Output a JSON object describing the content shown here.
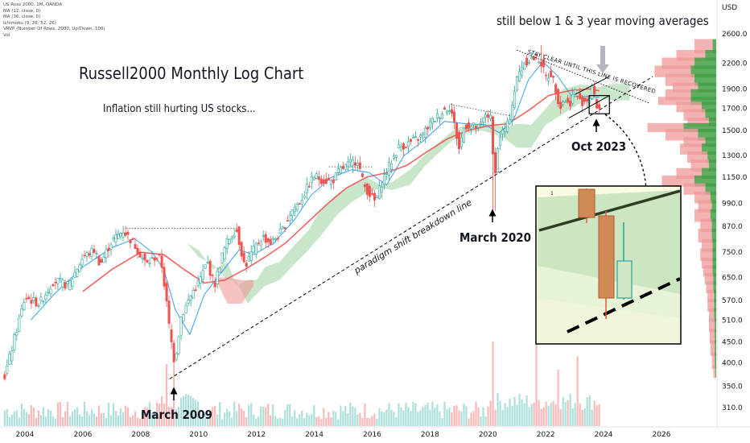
{
  "header": {
    "symbol": "US Russ 2000, 1M, OANDA",
    "indicators": [
      "MA (12, close, 0)",
      "MA (36, close, 0)",
      "Ichimoku (9, 26, 52, 26)",
      "VRVP (Number Of Rows, 2000, Up/Down, 100)",
      "Vol"
    ],
    "currency": "USD"
  },
  "annotations": {
    "title": "Russell2000 Monthly Log Chart",
    "subtitle": "Inflation still hurting US stocks...",
    "top_note": "still below 1 & 3 year moving averages",
    "stay_clear": "STAY CLEAR UNTIL THIS LINE IS RECOVERED",
    "trend_label": "paradigm shift breakdown line",
    "march_2009": "March 2009",
    "march_2020": "March 2020",
    "oct_2023": "Oct 2023"
  },
  "colors": {
    "up": "#26a69a",
    "down": "#ef5350",
    "ma12": "#2196f3",
    "ma36": "#ef5350",
    "cloud_bull": "#a5d6a7",
    "cloud_bear": "#ef9a9a",
    "profile_up": "#43a047",
    "profile_down": "#ef9a9a",
    "inset_bg": "#fbfbe3"
  },
  "chart_data": {
    "type": "candlestick",
    "title": "Russell2000 Monthly Log Chart",
    "scale": "log",
    "ylim": [
      310,
      2700
    ],
    "xlim": [
      2003.25,
      2027.1
    ],
    "y_ticks": [
      2600,
      2200,
      1900,
      1700,
      1500,
      1300,
      1150,
      990,
      870,
      750,
      650,
      570,
      510,
      450,
      400,
      350,
      310
    ],
    "x_ticks": [
      "2004",
      "2006",
      "2008",
      "2010",
      "2012",
      "2014",
      "2016",
      "2018",
      "2020",
      "2022",
      "2024",
      "2026"
    ],
    "close_path": [
      [
        2003.3,
        370
      ],
      [
        2004.0,
        580
      ],
      [
        2004.5,
        560
      ],
      [
        2005.0,
        640
      ],
      [
        2005.5,
        620
      ],
      [
        2006.0,
        730
      ],
      [
        2006.4,
        760
      ],
      [
        2006.6,
        700
      ],
      [
        2007.0,
        800
      ],
      [
        2007.4,
        850
      ],
      [
        2007.8,
        780
      ],
      [
        2008.2,
        700
      ],
      [
        2008.5,
        730
      ],
      [
        2008.7,
        720
      ],
      [
        2008.85,
        600
      ],
      [
        2009.0,
        480
      ],
      [
        2009.17,
        400
      ],
      [
        2009.4,
        520
      ],
      [
        2009.8,
        600
      ],
      [
        2010.0,
        630
      ],
      [
        2010.3,
        710
      ],
      [
        2010.55,
        620
      ],
      [
        2010.8,
        730
      ],
      [
        2011.0,
        800
      ],
      [
        2011.3,
        860
      ],
      [
        2011.6,
        690
      ],
      [
        2011.8,
        740
      ],
      [
        2012.2,
        820
      ],
      [
        2012.5,
        790
      ],
      [
        2012.9,
        850
      ],
      [
        2013.2,
        950
      ],
      [
        2013.5,
        1000
      ],
      [
        2013.8,
        1100
      ],
      [
        2014.0,
        1160
      ],
      [
        2014.3,
        1130
      ],
      [
        2014.6,
        1120
      ],
      [
        2014.9,
        1200
      ],
      [
        2015.3,
        1250
      ],
      [
        2015.5,
        1270
      ],
      [
        2015.7,
        1100
      ],
      [
        2016.1,
        1000
      ],
      [
        2016.4,
        1150
      ],
      [
        2016.9,
        1360
      ],
      [
        2017.3,
        1400
      ],
      [
        2017.7,
        1450
      ],
      [
        2018.0,
        1560
      ],
      [
        2018.5,
        1690
      ],
      [
        2018.7,
        1720
      ],
      [
        2018.9,
        1480
      ],
      [
        2019.0,
        1350
      ],
      [
        2019.2,
        1550
      ],
      [
        2019.7,
        1520
      ],
      [
        2019.95,
        1660
      ],
      [
        2020.1,
        1600
      ],
      [
        2020.22,
        1150
      ],
      [
        2020.4,
        1450
      ],
      [
        2020.7,
        1550
      ],
      [
        2021.0,
        2000
      ],
      [
        2021.2,
        2200
      ],
      [
        2021.5,
        2260
      ],
      [
        2021.8,
        2250
      ],
      [
        2022.0,
        2030
      ],
      [
        2022.2,
        2080
      ],
      [
        2022.5,
        1710
      ],
      [
        2022.65,
        1800
      ],
      [
        2022.8,
        1730
      ],
      [
        2023.0,
        1880
      ],
      [
        2023.2,
        1760
      ],
      [
        2023.5,
        1800
      ],
      [
        2023.6,
        1940
      ],
      [
        2023.7,
        1780
      ],
      [
        2023.8,
        1700
      ]
    ],
    "candle_count": 247,
    "extremes": {
      "low_2009": 345,
      "low_2020": 950,
      "high_2021": 2440
    },
    "levels": [
      {
        "from": [
          2007.5,
          860
        ],
        "to": [
          2011.5,
          860
        ]
      },
      {
        "from": [
          2014.5,
          1220
        ],
        "to": [
          2016.0,
          1220
        ]
      },
      {
        "from": [
          2018.7,
          1740
        ],
        "to": [
          2021.0,
          1620
        ]
      }
    ],
    "trendlines": [
      {
        "from": [
          2009.0,
          365
        ],
        "to": [
          2025.7,
          2040
        ]
      },
      {
        "from": [
          2021.0,
          2370
        ],
        "to": [
          2025.6,
          1750
        ]
      },
      {
        "from": [
          2023.0,
          1840
        ],
        "to": [
          2024.2,
          2040
        ]
      },
      {
        "from": [
          2022.8,
          1610
        ],
        "to": [
          2024.2,
          1830
        ]
      }
    ],
    "current_region": {
      "x": [
        2023.5,
        2024.2
      ],
      "y": [
        1650,
        1830
      ]
    },
    "cloud": [
      [
        2009.6,
        790,
        790
      ],
      [
        2010.0,
        760,
        730
      ],
      [
        2010.5,
        680,
        700
      ],
      [
        2011.0,
        710,
        640
      ],
      [
        2011.3,
        620,
        640
      ],
      [
        2011.7,
        640,
        560
      ],
      [
        2012.0,
        640,
        590
      ],
      [
        2012.3,
        690,
        620
      ],
      [
        2012.8,
        710,
        640
      ],
      [
        2013.3,
        780,
        700
      ],
      [
        2013.8,
        850,
        760
      ],
      [
        2014.2,
        950,
        820
      ],
      [
        2014.8,
        1050,
        930
      ],
      [
        2015.3,
        1100,
        1000
      ],
      [
        2015.8,
        1150,
        1050
      ],
      [
        2016.3,
        1100,
        1080
      ],
      [
        2016.7,
        1120,
        1070
      ],
      [
        2017.3,
        1200,
        1100
      ],
      [
        2017.8,
        1300,
        1220
      ],
      [
        2018.3,
        1400,
        1320
      ],
      [
        2018.8,
        1500,
        1420
      ],
      [
        2019.3,
        1560,
        1480
      ],
      [
        2019.8,
        1560,
        1500
      ],
      [
        2020.2,
        1560,
        1470
      ],
      [
        2020.6,
        1520,
        1430
      ],
      [
        2021.0,
        1560,
        1360
      ],
      [
        2021.5,
        1550,
        1360
      ],
      [
        2022.0,
        1700,
        1550
      ],
      [
        2022.6,
        1900,
        1650
      ],
      [
        2023.2,
        1950,
        1750
      ],
      [
        2023.8,
        1920,
        1800
      ],
      [
        2024.4,
        1960,
        1780
      ],
      [
        2024.9,
        1950,
        1780
      ]
    ],
    "cloud_bear": [
      [
        2010.6,
        640,
        650
      ],
      [
        2011.0,
        560,
        650
      ],
      [
        2011.5,
        560,
        640
      ],
      [
        2011.9,
        620,
        640
      ]
    ],
    "ma12": [
      [
        2004.2,
        510
      ],
      [
        2005.0,
        590
      ],
      [
        2006.0,
        690
      ],
      [
        2007.0,
        770
      ],
      [
        2007.8,
        810
      ],
      [
        2008.4,
        750
      ],
      [
        2008.8,
        680
      ],
      [
        2009.2,
        540
      ],
      [
        2009.7,
        470
      ],
      [
        2010.2,
        590
      ],
      [
        2010.8,
        670
      ],
      [
        2011.4,
        760
      ],
      [
        2011.9,
        740
      ],
      [
        2012.6,
        790
      ],
      [
        2013.3,
        900
      ],
      [
        2013.9,
        1040
      ],
      [
        2014.6,
        1150
      ],
      [
        2015.3,
        1200
      ],
      [
        2015.9,
        1180
      ],
      [
        2016.5,
        1100
      ],
      [
        2017.1,
        1300
      ],
      [
        2017.8,
        1420
      ],
      [
        2018.5,
        1580
      ],
      [
        2019.2,
        1560
      ],
      [
        2019.9,
        1550
      ],
      [
        2020.4,
        1480
      ],
      [
        2020.9,
        1600
      ],
      [
        2021.4,
        2000
      ],
      [
        2021.9,
        2220
      ],
      [
        2022.4,
        2050
      ],
      [
        2022.9,
        1820
      ],
      [
        2023.5,
        1820
      ],
      [
        2023.85,
        1810
      ]
    ],
    "ma36": [
      [
        2006.0,
        600
      ],
      [
        2007.0,
        680
      ],
      [
        2008.0,
        750
      ],
      [
        2008.8,
        740
      ],
      [
        2009.5,
        680
      ],
      [
        2010.2,
        630
      ],
      [
        2010.9,
        640
      ],
      [
        2011.6,
        680
      ],
      [
        2012.3,
        730
      ],
      [
        2013.0,
        790
      ],
      [
        2013.7,
        880
      ],
      [
        2014.4,
        980
      ],
      [
        2015.1,
        1080
      ],
      [
        2015.8,
        1150
      ],
      [
        2016.5,
        1180
      ],
      [
        2017.2,
        1230
      ],
      [
        2017.9,
        1330
      ],
      [
        2018.6,
        1430
      ],
      [
        2019.3,
        1500
      ],
      [
        2020.0,
        1540
      ],
      [
        2020.7,
        1560
      ],
      [
        2021.4,
        1680
      ],
      [
        2022.1,
        1830
      ],
      [
        2022.8,
        1880
      ],
      [
        2023.5,
        1900
      ],
      [
        2023.85,
        1880
      ]
    ],
    "volume_spikes": [
      [
        2008.9,
        0.55
      ],
      [
        2020.2,
        0.75
      ],
      [
        2021.7,
        0.9
      ],
      [
        2022.4,
        0.5
      ],
      [
        2023.1,
        0.62
      ]
    ],
    "volume_profile": [
      [
        2500,
        0.3,
        0.05
      ],
      [
        2350,
        0.55,
        0.15
      ],
      [
        2250,
        0.75,
        0.3
      ],
      [
        2150,
        0.85,
        0.35
      ],
      [
        2050,
        0.7,
        0.3
      ],
      [
        1950,
        0.6,
        0.25
      ],
      [
        1880,
        0.7,
        0.35
      ],
      [
        1800,
        0.8,
        0.35
      ],
      [
        1750,
        0.55,
        0.2
      ],
      [
        1680,
        0.45,
        0.15
      ],
      [
        1600,
        0.4,
        0.1
      ],
      [
        1550,
        0.95,
        0.45
      ],
      [
        1500,
        0.7,
        0.25
      ],
      [
        1430,
        0.45,
        0.15
      ],
      [
        1380,
        0.5,
        0.2
      ],
      [
        1320,
        0.4,
        0.12
      ],
      [
        1260,
        0.35,
        0.1
      ],
      [
        1200,
        0.55,
        0.2
      ],
      [
        1150,
        0.75,
        0.3
      ],
      [
        1100,
        0.45,
        0.15
      ],
      [
        1050,
        0.3,
        0.08
      ],
      [
        1000,
        0.25,
        0.06
      ],
      [
        950,
        0.3,
        0.08
      ],
      [
        900,
        0.22,
        0.06
      ],
      [
        850,
        0.25,
        0.06
      ],
      [
        800,
        0.2,
        0.05
      ],
      [
        760,
        0.22,
        0.05
      ],
      [
        720,
        0.2,
        0.05
      ],
      [
        690,
        0.18,
        0.05
      ],
      [
        660,
        0.16,
        0.04
      ],
      [
        630,
        0.14,
        0.04
      ],
      [
        600,
        0.12,
        0.03
      ],
      [
        570,
        0.12,
        0.03
      ],
      [
        540,
        0.1,
        0.03
      ],
      [
        510,
        0.1,
        0.02
      ],
      [
        480,
        0.09,
        0.02
      ],
      [
        450,
        0.08,
        0.02
      ],
      [
        420,
        0.06,
        0.02
      ],
      [
        390,
        0.04,
        0.01
      ]
    ]
  }
}
